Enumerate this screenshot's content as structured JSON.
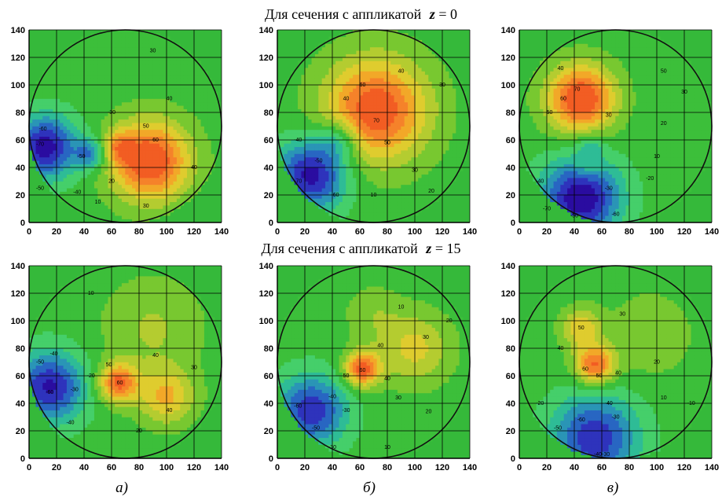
{
  "rows": [
    {
      "title": "Для сечения с аппликатой",
      "z_symbol": "z",
      "z_value": "= 0"
    },
    {
      "title": "Для сечения с аппликатой",
      "z_symbol": "z",
      "z_value": "= 15"
    }
  ],
  "captions": [
    "а)",
    "б)",
    "в)"
  ],
  "colorscale": [
    "#2a0ca0",
    "#2e33bc",
    "#2866c2",
    "#2a95b6",
    "#2ebc96",
    "#45cf6a",
    "#3cbf3a",
    "#78c830",
    "#b4cc30",
    "#dfcc2e",
    "#f2a828",
    "#f5822a",
    "#f25d23"
  ],
  "chart_data": [
    {
      "panel": "z0-a",
      "type": "heatmap",
      "subtype": "contour",
      "x_ticks": [
        0,
        20,
        40,
        60,
        80,
        100,
        120,
        140
      ],
      "y_ticks": [
        0,
        20,
        40,
        60,
        80,
        100,
        120,
        140
      ],
      "xlim": [
        0,
        140
      ],
      "ylim": [
        0,
        140
      ],
      "grid": true,
      "sources": [
        {
          "x": 88,
          "y": 45,
          "amp": 85,
          "sigma": 20
        },
        {
          "x": 12,
          "y": 55,
          "amp": -75,
          "sigma": 16
        },
        {
          "x": 45,
          "y": 50,
          "amp": -45,
          "sigma": 8
        },
        {
          "x": 65,
          "y": 55,
          "amp": 35,
          "sigma": 8
        }
      ],
      "contour_labels": [
        {
          "text": "-70",
          "x": 8,
          "y": 57
        },
        {
          "text": "-50",
          "x": 8,
          "y": 25
        },
        {
          "text": "-40",
          "x": 35,
          "y": 22
        },
        {
          "text": "-60",
          "x": 10,
          "y": 68
        },
        {
          "text": "50",
          "x": 85,
          "y": 70
        },
        {
          "text": "60",
          "x": 92,
          "y": 60
        },
        {
          "text": "40",
          "x": 120,
          "y": 40
        },
        {
          "text": "30",
          "x": 85,
          "y": 12
        },
        {
          "text": "20",
          "x": 60,
          "y": 30
        },
        {
          "text": "10",
          "x": 50,
          "y": 15
        },
        {
          "text": "30",
          "x": 90,
          "y": 125
        },
        {
          "text": "40",
          "x": 102,
          "y": 90
        },
        {
          "text": "-30",
          "x": 60,
          "y": 80
        },
        {
          "text": "-50",
          "x": 38,
          "y": 48
        }
      ]
    },
    {
      "panel": "z0-b",
      "type": "heatmap",
      "subtype": "contour",
      "x_ticks": [
        0,
        20,
        40,
        60,
        80,
        100,
        120,
        140
      ],
      "y_ticks": [
        0,
        20,
        40,
        60,
        80,
        100,
        120,
        140
      ],
      "xlim": [
        0,
        140
      ],
      "ylim": [
        0,
        140
      ],
      "grid": true,
      "sources": [
        {
          "x": 72,
          "y": 82,
          "amp": 80,
          "sigma": 26
        },
        {
          "x": 25,
          "y": 35,
          "amp": -75,
          "sigma": 18
        },
        {
          "x": 45,
          "y": 60,
          "amp": -35,
          "sigma": 10
        }
      ],
      "contour_labels": [
        {
          "text": "-70",
          "x": 15,
          "y": 30
        },
        {
          "text": "-60",
          "x": 42,
          "y": 20
        },
        {
          "text": "-50",
          "x": 30,
          "y": 45
        },
        {
          "text": "-40",
          "x": 15,
          "y": 60
        },
        {
          "text": "70",
          "x": 72,
          "y": 74
        },
        {
          "text": "60",
          "x": 62,
          "y": 100
        },
        {
          "text": "50",
          "x": 80,
          "y": 58
        },
        {
          "text": "40",
          "x": 50,
          "y": 90
        },
        {
          "text": "30",
          "x": 100,
          "y": 38
        },
        {
          "text": "20",
          "x": 112,
          "y": 23
        },
        {
          "text": "10",
          "x": 70,
          "y": 20
        },
        {
          "text": "30",
          "x": 120,
          "y": 100
        },
        {
          "text": "40",
          "x": 90,
          "y": 110
        }
      ]
    },
    {
      "panel": "z0-c",
      "type": "heatmap",
      "subtype": "contour",
      "x_ticks": [
        0,
        20,
        40,
        60,
        80,
        100,
        120,
        140
      ],
      "y_ticks": [
        0,
        20,
        40,
        60,
        80,
        100,
        120,
        140
      ],
      "xlim": [
        0,
        140
      ],
      "ylim": [
        0,
        140
      ],
      "grid": true,
      "sources": [
        {
          "x": 45,
          "y": 90,
          "amp": 85,
          "sigma": 17
        },
        {
          "x": 45,
          "y": 18,
          "amp": -80,
          "sigma": 20
        },
        {
          "x": 52,
          "y": 55,
          "amp": -25,
          "sigma": 7
        },
        {
          "x": 50,
          "y": 42,
          "amp": 20,
          "sigma": 7
        }
      ],
      "contour_labels": [
        {
          "text": "70",
          "x": 42,
          "y": 97
        },
        {
          "text": "60",
          "x": 32,
          "y": 90
        },
        {
          "text": "50",
          "x": 22,
          "y": 80
        },
        {
          "text": "40",
          "x": 30,
          "y": 112
        },
        {
          "text": "30",
          "x": 65,
          "y": 78
        },
        {
          "text": "20",
          "x": 105,
          "y": 72
        },
        {
          "text": "10",
          "x": 100,
          "y": 48
        },
        {
          "text": "-70",
          "x": 20,
          "y": 10
        },
        {
          "text": "-60",
          "x": 70,
          "y": 6
        },
        {
          "text": "-50",
          "x": 40,
          "y": 5
        },
        {
          "text": "-40",
          "x": 15,
          "y": 30
        },
        {
          "text": "-30",
          "x": 65,
          "y": 25
        },
        {
          "text": "-20",
          "x": 95,
          "y": 32
        },
        {
          "text": "50",
          "x": 105,
          "y": 110
        },
        {
          "text": "30",
          "x": 120,
          "y": 95
        }
      ]
    },
    {
      "panel": "z15-a",
      "type": "heatmap",
      "subtype": "contour",
      "x_ticks": [
        0,
        20,
        40,
        60,
        80,
        100,
        120,
        140
      ],
      "y_ticks": [
        0,
        20,
        40,
        60,
        80,
        100,
        120,
        140
      ],
      "xlim": [
        0,
        140
      ],
      "ylim": [
        0,
        140
      ],
      "grid": true,
      "sources": [
        {
          "x": 65,
          "y": 55,
          "amp": 70,
          "sigma": 10
        },
        {
          "x": 100,
          "y": 45,
          "amp": 45,
          "sigma": 14
        },
        {
          "x": 15,
          "y": 52,
          "amp": -70,
          "sigma": 18
        },
        {
          "x": 90,
          "y": 95,
          "amp": 20,
          "sigma": 25
        }
      ],
      "contour_labels": [
        {
          "text": "-60",
          "x": 15,
          "y": 48
        },
        {
          "text": "-50",
          "x": 8,
          "y": 70
        },
        {
          "text": "-40",
          "x": 18,
          "y": 76
        },
        {
          "text": "-30",
          "x": 33,
          "y": 50
        },
        {
          "text": "-40",
          "x": 30,
          "y": 26
        },
        {
          "text": "60",
          "x": 66,
          "y": 55
        },
        {
          "text": "50",
          "x": 58,
          "y": 68
        },
        {
          "text": "40",
          "x": 102,
          "y": 35
        },
        {
          "text": "30",
          "x": 120,
          "y": 66
        },
        {
          "text": "20",
          "x": 80,
          "y": 20
        },
        {
          "text": "10",
          "x": 45,
          "y": 120
        },
        {
          "text": "40",
          "x": 92,
          "y": 75
        },
        {
          "text": "-20",
          "x": 45,
          "y": 60
        }
      ]
    },
    {
      "panel": "z15-b",
      "type": "heatmap",
      "subtype": "contour",
      "x_ticks": [
        0,
        20,
        40,
        60,
        80,
        100,
        120,
        140
      ],
      "y_ticks": [
        0,
        20,
        40,
        60,
        80,
        100,
        120,
        140
      ],
      "xlim": [
        0,
        140
      ],
      "ylim": [
        0,
        140
      ],
      "grid": true,
      "sources": [
        {
          "x": 62,
          "y": 65,
          "amp": 75,
          "sigma": 9
        },
        {
          "x": 100,
          "y": 80,
          "amp": 35,
          "sigma": 18
        },
        {
          "x": 70,
          "y": 105,
          "amp": 15,
          "sigma": 14
        },
        {
          "x": 25,
          "y": 35,
          "amp": -65,
          "sigma": 18
        }
      ],
      "contour_labels": [
        {
          "text": "-50",
          "x": 28,
          "y": 22
        },
        {
          "text": "-40",
          "x": 40,
          "y": 45
        },
        {
          "text": "-30",
          "x": 50,
          "y": 35
        },
        {
          "text": "-60",
          "x": 15,
          "y": 38
        },
        {
          "text": "60",
          "x": 62,
          "y": 64
        },
        {
          "text": "50",
          "x": 50,
          "y": 60
        },
        {
          "text": "40",
          "x": 80,
          "y": 58
        },
        {
          "text": "30",
          "x": 88,
          "y": 44
        },
        {
          "text": "20",
          "x": 110,
          "y": 34
        },
        {
          "text": "10",
          "x": 80,
          "y": 8
        },
        {
          "text": "-30",
          "x": 40,
          "y": 8
        },
        {
          "text": "30",
          "x": 108,
          "y": 88
        },
        {
          "text": "20",
          "x": 125,
          "y": 100
        },
        {
          "text": "10",
          "x": 90,
          "y": 110
        },
        {
          "text": "40",
          "x": 75,
          "y": 82
        }
      ]
    },
    {
      "panel": "z15-c",
      "type": "heatmap",
      "subtype": "contour",
      "x_ticks": [
        0,
        20,
        40,
        60,
        80,
        100,
        120,
        140
      ],
      "y_ticks": [
        0,
        20,
        40,
        60,
        80,
        100,
        120,
        140
      ],
      "xlim": [
        0,
        140
      ],
      "ylim": [
        0,
        140
      ],
      "grid": true,
      "sources": [
        {
          "x": 55,
          "y": 68,
          "amp": 70,
          "sigma": 10
        },
        {
          "x": 45,
          "y": 95,
          "amp": 40,
          "sigma": 10
        },
        {
          "x": 55,
          "y": 15,
          "amp": -65,
          "sigma": 22
        },
        {
          "x": 95,
          "y": 90,
          "amp": 15,
          "sigma": 22
        }
      ],
      "contour_labels": [
        {
          "text": "60",
          "x": 48,
          "y": 65
        },
        {
          "text": "50",
          "x": 58,
          "y": 60
        },
        {
          "text": "40",
          "x": 72,
          "y": 62
        },
        {
          "text": "30",
          "x": 75,
          "y": 105
        },
        {
          "text": "20",
          "x": 100,
          "y": 70
        },
        {
          "text": "10",
          "x": 105,
          "y": 44
        },
        {
          "text": "-10",
          "x": 125,
          "y": 40
        },
        {
          "text": "-20",
          "x": 15,
          "y": 40
        },
        {
          "text": "-30",
          "x": 70,
          "y": 30
        },
        {
          "text": "-40",
          "x": 65,
          "y": 40
        },
        {
          "text": "-50",
          "x": 28,
          "y": 22
        },
        {
          "text": "-60",
          "x": 45,
          "y": 28
        },
        {
          "text": "-40-30",
          "x": 60,
          "y": 3
        },
        {
          "text": "50",
          "x": 45,
          "y": 95
        },
        {
          "text": "40",
          "x": 30,
          "y": 80
        }
      ]
    }
  ]
}
